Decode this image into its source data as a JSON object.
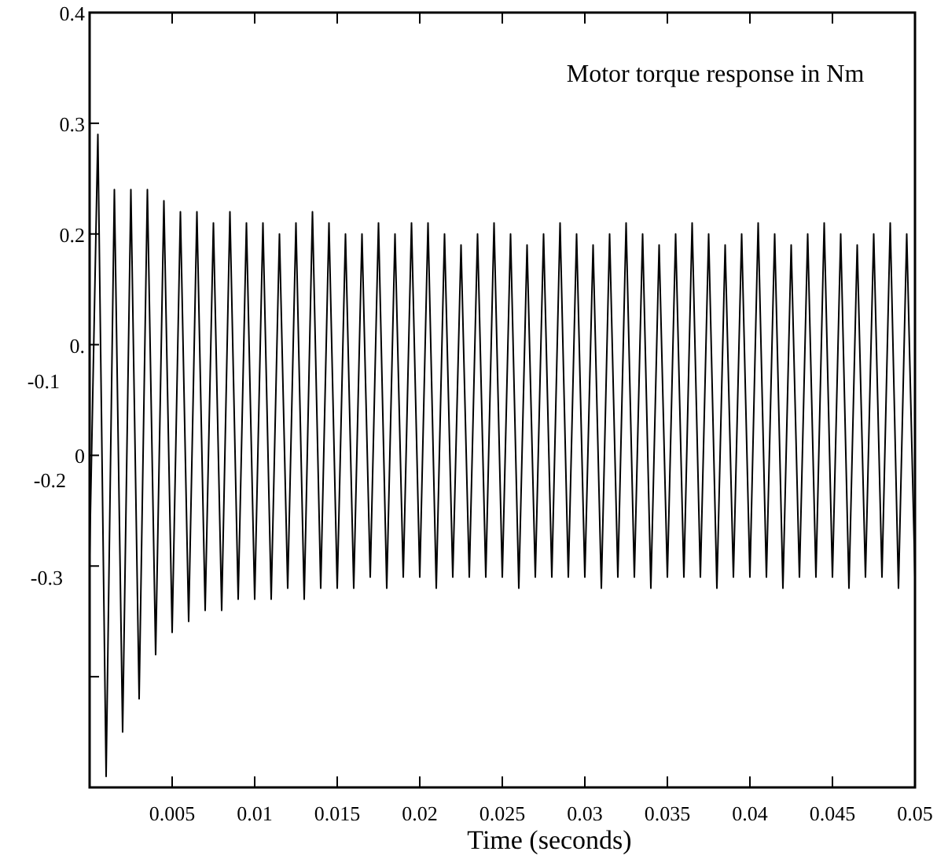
{
  "chart_data": {
    "type": "line",
    "title": "Motor torque response in Nm",
    "xlabel": "Time (seconds)",
    "x": [
      0,
      0.0005,
      0.001,
      0.0015,
      0.002,
      0.0025,
      0.003,
      0.0035,
      0.004,
      0.0045,
      0.005,
      0.0055,
      0.006,
      0.0065,
      0.007,
      0.0075,
      0.008,
      0.0085,
      0.009,
      0.0095,
      0.01,
      0.0105,
      0.011,
      0.0115,
      0.012,
      0.0125,
      0.013,
      0.0135,
      0.014,
      0.0145,
      0.015,
      0.0155,
      0.016,
      0.0165,
      0.017,
      0.0175,
      0.018,
      0.0185,
      0.019,
      0.0195,
      0.02,
      0.0205,
      0.021,
      0.0215,
      0.022,
      0.0225,
      0.023,
      0.0235,
      0.024,
      0.0245,
      0.025,
      0.0255,
      0.026,
      0.0265,
      0.027,
      0.0275,
      0.028,
      0.0285,
      0.029,
      0.0295,
      0.03,
      0.0305,
      0.031,
      0.0315,
      0.032,
      0.0325,
      0.033,
      0.0335,
      0.034,
      0.0345,
      0.035,
      0.0355,
      0.036,
      0.0365,
      0.037,
      0.0375,
      0.038,
      0.0385,
      0.039,
      0.0395,
      0.04,
      0.0405,
      0.041,
      0.0415,
      0.042,
      0.0425,
      0.043,
      0.0435,
      0.044,
      0.0445,
      0.045,
      0.0455,
      0.046,
      0.0465,
      0.047,
      0.0475,
      0.048,
      0.0485,
      0.049,
      0.0495,
      0.05
    ],
    "series": [
      {
        "color": "#000000",
        "values": [
          -0.09,
          0.29,
          -0.29,
          0.24,
          -0.25,
          0.24,
          -0.22,
          0.24,
          -0.18,
          0.23,
          -0.16,
          0.22,
          -0.15,
          0.22,
          -0.14,
          0.21,
          -0.14,
          0.22,
          -0.13,
          0.21,
          -0.13,
          0.21,
          -0.13,
          0.2,
          -0.12,
          0.21,
          -0.13,
          0.22,
          -0.12,
          0.21,
          -0.12,
          0.2,
          -0.12,
          0.2,
          -0.11,
          0.21,
          -0.12,
          0.2,
          -0.11,
          0.21,
          -0.11,
          0.21,
          -0.12,
          0.2,
          -0.11,
          0.19,
          -0.11,
          0.2,
          -0.11,
          0.21,
          -0.11,
          0.2,
          -0.12,
          0.19,
          -0.11,
          0.2,
          -0.11,
          0.21,
          -0.11,
          0.2,
          -0.11,
          0.19,
          -0.12,
          0.2,
          -0.11,
          0.21,
          -0.11,
          0.2,
          -0.12,
          0.19,
          -0.11,
          0.2,
          -0.11,
          0.21,
          -0.11,
          0.2,
          -0.12,
          0.19,
          -0.11,
          0.2,
          -0.11,
          0.21,
          -0.11,
          0.2,
          -0.12,
          0.19,
          -0.11,
          0.2,
          -0.11,
          0.21,
          -0.11,
          0.2,
          -0.12,
          0.19,
          -0.11,
          0.2,
          -0.11,
          0.21,
          -0.12,
          0.2,
          -0.11
        ]
      }
    ],
    "xlim": [
      0,
      0.05
    ],
    "xticks": [
      0.005,
      0.01,
      0.015,
      0.02,
      0.025,
      0.03,
      0.035,
      0.04,
      0.045,
      0.05
    ],
    "ylim": [
      -0.3,
      0.4
    ],
    "yticks": [
      0.4,
      0.3,
      0.2,
      {
        "value": 0.1,
        "label": "0."
      },
      0,
      {
        "value": -0.1,
        "label": null
      },
      {
        "value": -0.2,
        "label": null
      }
    ],
    "annotations": [
      "-0.1",
      "-0.2",
      "-0.3"
    ],
    "grid": false,
    "marker": "none",
    "line_style": "solid"
  }
}
